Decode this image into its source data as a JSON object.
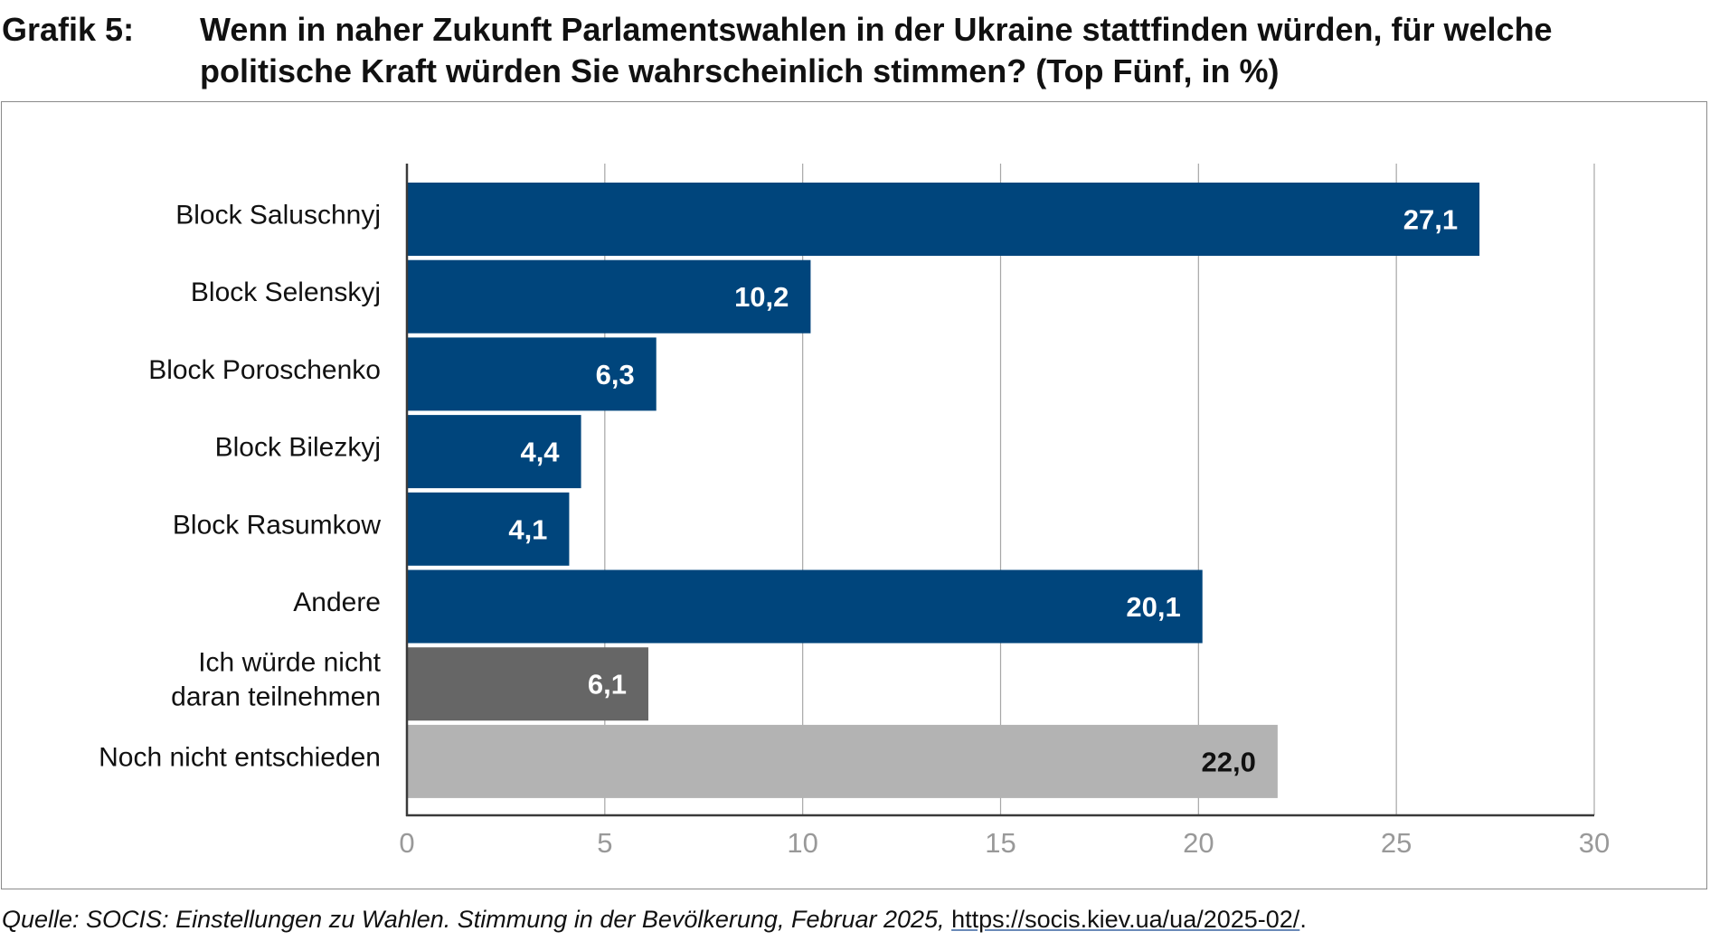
{
  "heading": {
    "label": "Grafik 5:",
    "title": "Wenn in naher Zukunft Parlamentswahlen in der Ukraine stattfinden würden, für welche politische Kraft würden Sie wahrscheinlich stimmen? (Top Fünf, in %)"
  },
  "source": {
    "text": "Quelle: SOCIS: Einstellungen zu Wahlen. Stimmung in der Bevölkerung, Februar 2025,",
    "link": "https://socis.kiev.ua/ua/2025-02/",
    "end": "."
  },
  "chart_data": {
    "type": "bar",
    "orientation": "horizontal",
    "categories": [
      "Block Saluschnyj",
      "Block Selenskyj",
      "Block Poroschenko",
      "Block Bilezkyj",
      "Block Rasumkow",
      "Andere",
      "Ich würde nicht daran teilnehmen",
      "Noch nicht entschieden"
    ],
    "category_lines": [
      [
        "Block Saluschnyj"
      ],
      [
        "Block Selenskyj"
      ],
      [
        "Block Poroschenko"
      ],
      [
        "Block Bilezkyj"
      ],
      [
        "Block Rasumkow"
      ],
      [
        "Andere"
      ],
      [
        "Ich würde nicht",
        "daran teilnehmen"
      ],
      [
        "Noch nicht entschieden"
      ]
    ],
    "values": [
      27.1,
      10.2,
      6.3,
      4.4,
      4.1,
      20.1,
      6.1,
      22.0
    ],
    "value_labels": [
      "27,1",
      "10,2",
      "6,3",
      "4,4",
      "4,1",
      "20,1",
      "6,1",
      "22,0"
    ],
    "bar_colors": [
      "#00457c",
      "#00457c",
      "#00457c",
      "#00457c",
      "#00457c",
      "#00457c",
      "#666666",
      "#b3b3b3"
    ],
    "label_colors": [
      "#ffffff",
      "#ffffff",
      "#ffffff",
      "#ffffff",
      "#ffffff",
      "#ffffff",
      "#ffffff",
      "#111111"
    ],
    "xlim": [
      0,
      30
    ],
    "xticks": [
      0,
      5,
      10,
      15,
      20,
      25,
      30
    ],
    "xtick_labels": [
      "0",
      "5",
      "10",
      "15",
      "20",
      "25",
      "30"
    ],
    "grid": true,
    "title": "",
    "xlabel": "",
    "ylabel": ""
  }
}
